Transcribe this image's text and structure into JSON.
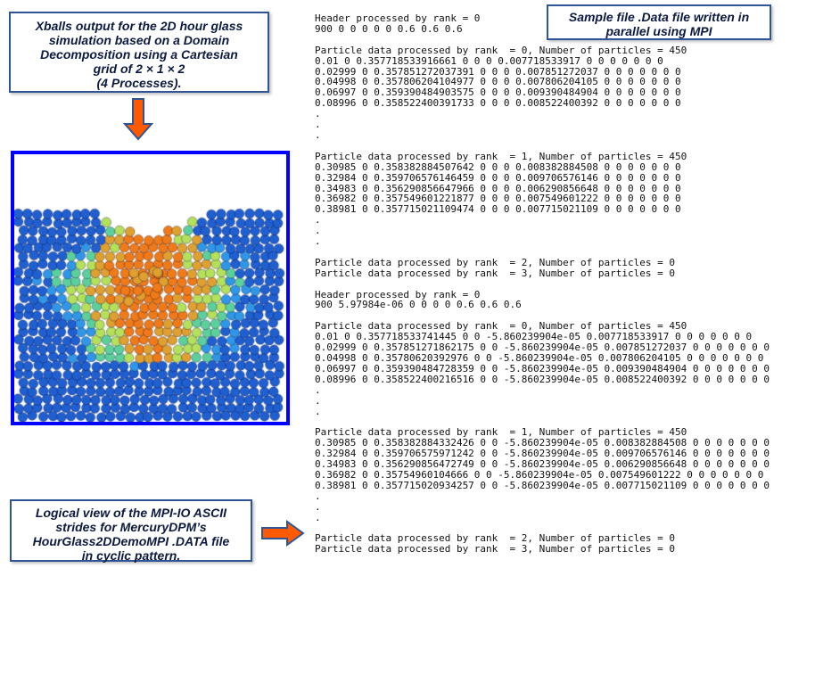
{
  "title_box": {
    "lines": [
      "Xballs output for the 2D hour glass",
      "simulation based on a Domain",
      "Decomposition using a Cartesian",
      "grid of 2 × 1 × 2",
      "(4 Processes)."
    ]
  },
  "sample_box": {
    "lines": [
      "Sample file .Data file written in",
      "parallel using MPI"
    ]
  },
  "logical_box": {
    "lines": [
      "Logical view of the MPI-IO ASCII",
      "strides for  MercuryDPM’s",
      "HourGlass2DDemoMPI .DATA file",
      "in cyclic pattern."
    ]
  },
  "arrow_colors": {
    "fill": "#ff5a00",
    "stroke": "#2f5597"
  },
  "simulation": {
    "frame_color": "#0000ff",
    "particle_colors": [
      "#1f5fd0",
      "#2f96e8",
      "#5cd09c",
      "#b4e05a",
      "#e0a030",
      "#f07a18"
    ]
  },
  "listing": {
    "lines": [
      "Header processed by rank = 0",
      "900 0 0 0 0 0 0.6 0.6 0.6",
      "",
      "Particle data processed by rank  = 0, Number of particles = 450",
      "0.01 0 0.357718533916661 0 0 0 0.007718533917 0 0 0 0 0 0 0",
      "0.02999 0 0.357851272037391 0 0 0 0.007851272037 0 0 0 0 0 0 0",
      "0.04998 0 0.357806204104977 0 0 0 0.007806204105 0 0 0 0 0 0 0",
      "0.06997 0 0.359390484903575 0 0 0 0.009390484904 0 0 0 0 0 0 0",
      "0.08996 0 0.358522400391733 0 0 0 0.008522400392 0 0 0 0 0 0 0",
      ".",
      ".",
      ".",
      "",
      "Particle data processed by rank  = 1, Number of particles = 450",
      "0.30985 0 0.358382884507642 0 0 0 0.008382884508 0 0 0 0 0 0 0",
      "0.32984 0 0.359706576146459 0 0 0 0.009706576146 0 0 0 0 0 0 0",
      "0.34983 0 0.356290856647966 0 0 0 0.006290856648 0 0 0 0 0 0 0",
      "0.36982 0 0.357549601221877 0 0 0 0.007549601222 0 0 0 0 0 0 0",
      "0.38981 0 0.357715021109474 0 0 0 0.007715021109 0 0 0 0 0 0 0",
      ".",
      ".",
      ".",
      "",
      "Particle data processed by rank  = 2, Number of particles = 0",
      "Particle data processed by rank  = 3, Number of particles = 0",
      "",
      "Header processed by rank = 0",
      "900 5.97984e-06 0 0 0 0 0.6 0.6 0.6",
      "",
      "Particle data processed by rank  = 0, Number of particles = 450",
      "0.01 0 0.357718533741445 0 0 -5.860239904e-05 0.007718533917 0 0 0 0 0 0 0",
      "0.02999 0 0.357851271862175 0 0 -5.860239904e-05 0.007851272037 0 0 0 0 0 0 0",
      "0.04998 0 0.35780620392976 0 0 -5.860239904e-05 0.007806204105 0 0 0 0 0 0 0",
      "0.06997 0 0.359390484728359 0 0 -5.860239904e-05 0.009390484904 0 0 0 0 0 0 0",
      "0.08996 0 0.358522400216516 0 0 -5.860239904e-05 0.008522400392 0 0 0 0 0 0 0",
      ".",
      ".",
      ".",
      "",
      "Particle data processed by rank  = 1, Number of particles = 450",
      "0.30985 0 0.358382884332426 0 0 -5.860239904e-05 0.008382884508 0 0 0 0 0 0 0",
      "0.32984 0 0.359706575971242 0 0 -5.860239904e-05 0.009706576146 0 0 0 0 0 0 0",
      "0.34983 0 0.356290856472749 0 0 -5.860239904e-05 0.006290856648 0 0 0 0 0 0 0",
      "0.36982 0 0.35754960104666 0 0 -5.860239904e-05 0.007549601222 0 0 0 0 0 0 0",
      "0.38981 0 0.357715020934257 0 0 -5.860239904e-05 0.007715021109 0 0 0 0 0 0 0",
      ".",
      ".",
      ".",
      "",
      "Particle data processed by rank  = 2, Number of particles = 0",
      "Particle data processed by rank  = 3, Number of particles = 0"
    ]
  }
}
